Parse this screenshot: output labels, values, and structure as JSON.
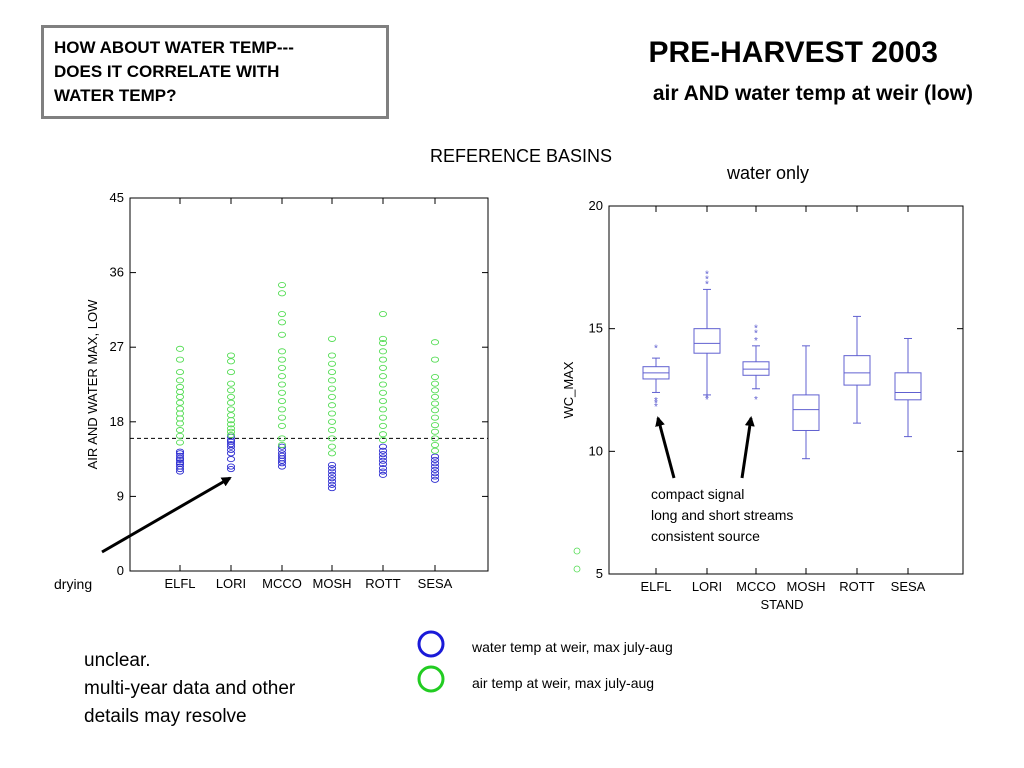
{
  "question_box": {
    "lines": [
      "HOW ABOUT WATER TEMP---",
      "DOES IT CORRELATE WITH",
      "WATER TEMP?"
    ]
  },
  "title": "PRE-HARVEST 2003",
  "subtitle": "air AND water temp at weir (low)",
  "section_label": "REFERENCE BASINS",
  "right_chart_note": "water only",
  "drying_label": "drying",
  "bottom_note": {
    "lines": [
      "unclear.",
      "multi-year data and other",
      "details may resolve"
    ]
  },
  "legend": [
    {
      "label": "water temp at weir, max july-aug",
      "color": "#1a1ad8"
    },
    {
      "label": "air temp at weir, max july-aug",
      "color": "#22cc22"
    }
  ],
  "colors": {
    "water": "#2b2bd0",
    "air": "#55dd55",
    "box": "#6060d0"
  },
  "chart_data": [
    {
      "type": "scatter",
      "ylabel": "AIR AND WATER MAX, LOW",
      "xlabel": "",
      "categories": [
        "ELFL",
        "LORI",
        "MCCO",
        "MOSH",
        "ROTT",
        "SESA"
      ],
      "ylim": [
        0,
        45
      ],
      "yticks": [
        0,
        9,
        18,
        27,
        36,
        45
      ],
      "reference_line": 16,
      "series": [
        {
          "name": "water temp at weir, max july-aug",
          "color": "#2b2bd0",
          "points": [
            [
              "ELFL",
              [
                12.0,
                12.3,
                12.6,
                12.9,
                13.1,
                13.4,
                13.6,
                13.9,
                14.2,
                14.4
              ]
            ],
            [
              "LORI",
              [
                12.3,
                12.6,
                13.5,
                14.2,
                14.6,
                15.0,
                15.3,
                15.6,
                15.8,
                16.2
              ]
            ],
            [
              "MCCO",
              [
                12.6,
                13.0,
                13.3,
                13.6,
                13.9,
                14.2,
                14.6,
                15.0
              ]
            ],
            [
              "MOSH",
              [
                10.0,
                10.4,
                10.8,
                11.2,
                11.6,
                12.0,
                12.4,
                12.8
              ]
            ],
            [
              "ROTT",
              [
                11.6,
                12.0,
                12.4,
                12.9,
                13.3,
                13.7,
                14.1,
                14.5,
                15.0
              ]
            ],
            [
              "SESA",
              [
                11.0,
                11.4,
                11.8,
                12.2,
                12.6,
                13.0,
                13.4,
                13.8
              ]
            ]
          ]
        },
        {
          "name": "air temp at weir, max july-aug",
          "color": "#55dd55",
          "points": [
            [
              "ELFL",
              [
                15.5,
                16.3,
                17.0,
                17.8,
                18.4,
                19.0,
                19.6,
                20.3,
                21.0,
                21.6,
                22.2,
                23.0,
                24.0,
                25.5,
                26.8
              ]
            ],
            [
              "LORI",
              [
                16.4,
                16.8,
                17.2,
                17.7,
                18.2,
                18.8,
                19.5,
                20.3,
                21.0,
                21.8,
                22.6,
                24.0,
                25.3,
                26.0
              ]
            ],
            [
              "MCCO",
              [
                15.2,
                16.0,
                17.5,
                18.5,
                19.5,
                20.5,
                21.5,
                22.5,
                23.5,
                24.5,
                25.5,
                26.5,
                28.5,
                30.0,
                31.0,
                33.5,
                34.5
              ]
            ],
            [
              "MOSH",
              [
                14.2,
                15.0,
                16.0,
                17.0,
                18.0,
                19.0,
                20.0,
                21.0,
                22.0,
                23.0,
                24.0,
                25.0,
                26.0,
                28.0
              ]
            ],
            [
              "ROTT",
              [
                15.8,
                16.5,
                17.5,
                18.5,
                19.5,
                20.5,
                21.5,
                22.5,
                23.5,
                24.5,
                25.5,
                26.5,
                27.5,
                28.0,
                31.0
              ]
            ],
            [
              "SESA",
              [
                14.5,
                15.2,
                16.0,
                16.8,
                17.6,
                18.5,
                19.4,
                20.2,
                21.0,
                21.8,
                22.6,
                23.4,
                25.5,
                27.6
              ]
            ]
          ]
        }
      ]
    },
    {
      "type": "box",
      "ylabel": "WC_MAX",
      "xlabel": "STAND",
      "note": "water only",
      "categories": [
        "ELFL",
        "LORI",
        "MCCO",
        "MOSH",
        "ROTT",
        "SESA"
      ],
      "ylim": [
        5,
        20
      ],
      "yticks": [
        5,
        10,
        15,
        20
      ],
      "boxes": [
        {
          "category": "ELFL",
          "whisker_low": 12.4,
          "q1": 12.95,
          "median": 13.2,
          "q3": 13.45,
          "whisker_high": 13.8,
          "outliers": [
            11.8,
            11.95,
            12.05,
            14.2
          ]
        },
        {
          "category": "LORI",
          "whisker_low": 12.3,
          "q1": 14.0,
          "median": 14.4,
          "q3": 15.0,
          "whisker_high": 16.6,
          "outliers": [
            12.1,
            12.2,
            16.8,
            17.0,
            17.2
          ]
        },
        {
          "category": "MCCO",
          "whisker_low": 12.55,
          "q1": 13.1,
          "median": 13.35,
          "q3": 13.65,
          "whisker_high": 14.3,
          "outliers": [
            12.1,
            14.5,
            14.8,
            15.0
          ]
        },
        {
          "category": "MOSH",
          "whisker_low": 9.7,
          "q1": 10.85,
          "median": 11.7,
          "q3": 12.3,
          "whisker_high": 14.3,
          "outliers": []
        },
        {
          "category": "ROTT",
          "whisker_low": 11.15,
          "q1": 12.7,
          "median": 13.2,
          "q3": 13.9,
          "whisker_high": 15.5,
          "outliers": []
        },
        {
          "category": "SESA",
          "whisker_low": 10.6,
          "q1": 12.1,
          "median": 12.4,
          "q3": 13.2,
          "whisker_high": 14.6,
          "outliers": []
        }
      ],
      "annotation": {
        "lines": [
          "compact signal",
          "long and short streams",
          "consistent source"
        ],
        "arrow_targets": [
          "ELFL",
          "MCCO"
        ]
      }
    }
  ]
}
